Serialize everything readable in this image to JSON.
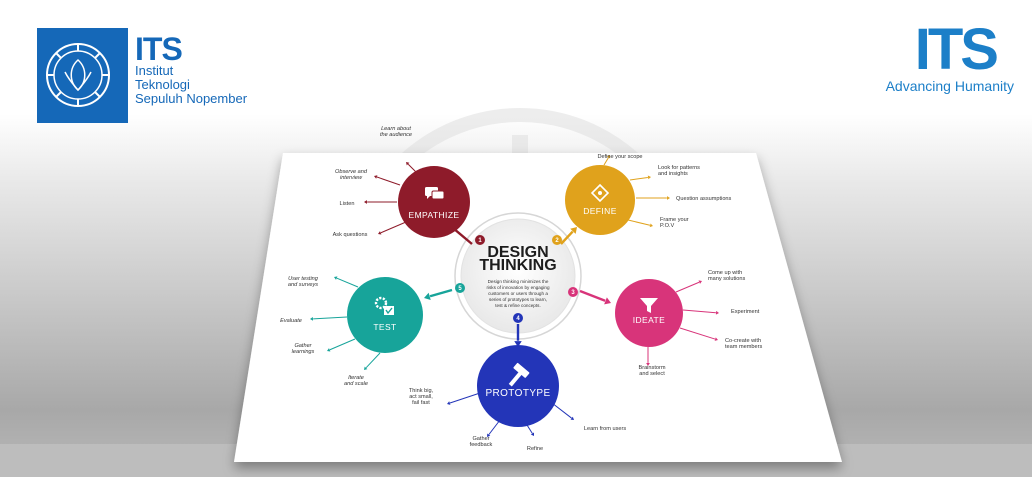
{
  "header": {
    "left_logo": {
      "name": "ITS",
      "lines": [
        "Institut",
        "Teknologi",
        "Sepuluh Nopember"
      ]
    },
    "right_logo": {
      "name": "ITS",
      "tagline": "Advancing Humanity"
    }
  },
  "diagram": {
    "center": {
      "title_line1": "DESIGN",
      "title_line2": "THINKING",
      "body": [
        "Design thinking minimizes the",
        "risks of innovation by engaging",
        "customers or users through a",
        "series of prototypes to learn,",
        "test & refine concepts."
      ]
    },
    "stages": [
      {
        "key": "empathize",
        "number": "1",
        "label": "EMPATHIZE",
        "color": "#8e1b2a",
        "icon": "chat-bubbles-icon",
        "items": [
          [
            "Learn about",
            "the audience"
          ],
          [
            "Observe and",
            "interview"
          ],
          [
            "Listen"
          ],
          [
            "Ask questions"
          ]
        ]
      },
      {
        "key": "define",
        "number": "2",
        "label": "DEFINE",
        "color": "#e0a21c",
        "icon": "diamond-target-icon",
        "items": [
          [
            "Define your scope"
          ],
          [
            "Look for patterns",
            "and insights"
          ],
          [
            "Question assumptions"
          ],
          [
            "Frame your",
            "P.O.V"
          ]
        ]
      },
      {
        "key": "ideate",
        "number": "3",
        "label": "IDEATE",
        "color": "#d8347a",
        "icon": "funnel-icon",
        "items": [
          [
            "Come up with",
            "many solutions"
          ],
          [
            "Experiment"
          ],
          [
            "Co-create with",
            "team members"
          ],
          [
            "Brainstorm",
            "and select"
          ]
        ]
      },
      {
        "key": "prototype",
        "number": "4",
        "label": "PROTOTYPE",
        "color": "#2335b8",
        "icon": "hammer-icon",
        "items": [
          [
            "Think big,",
            "act small,",
            "fail fast"
          ],
          [
            "Gather",
            "feedback"
          ],
          [
            "Refine"
          ],
          [
            "Learn from users"
          ]
        ]
      },
      {
        "key": "test",
        "number": "5",
        "label": "TEST",
        "color": "#17a49a",
        "icon": "gear-checklist-icon",
        "items": [
          [
            "User testing",
            "and surveys"
          ],
          [
            "Evaluate"
          ],
          [
            "Gather",
            "learnings"
          ],
          [
            "Iterate",
            "and scale"
          ]
        ]
      }
    ]
  }
}
